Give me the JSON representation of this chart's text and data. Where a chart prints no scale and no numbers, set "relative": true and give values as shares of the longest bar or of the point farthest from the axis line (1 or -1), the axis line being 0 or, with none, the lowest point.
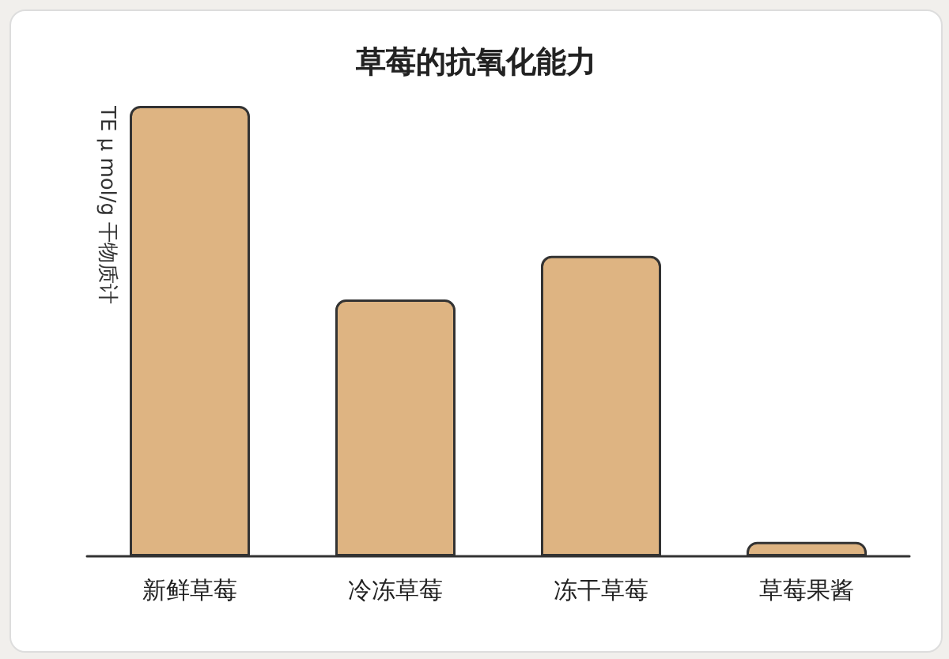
{
  "chart_data": {
    "type": "bar",
    "title": "草莓的抗氧化能力",
    "ylabel": "TE μ mol/g 干物质计",
    "categories": [
      "新鲜草莓",
      "冷冻草莓",
      "冻干草莓",
      "草莓果酱"
    ],
    "values": [
      1,
      0.57,
      0.667,
      0.032
    ],
    "color": "#deb482",
    "relative": true,
    "grid": false
  }
}
